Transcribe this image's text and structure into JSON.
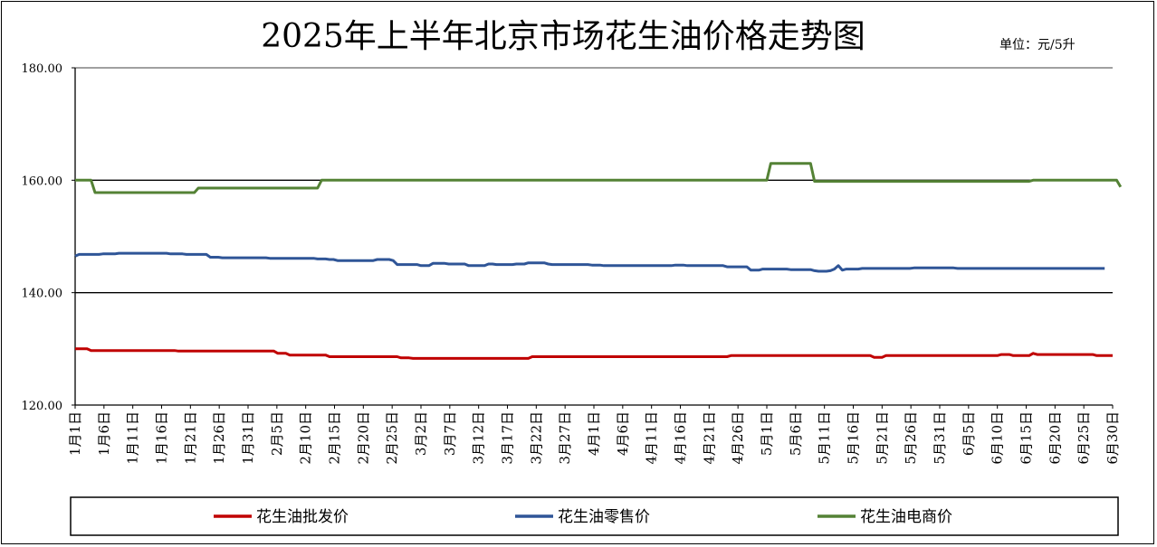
{
  "chart_data": {
    "type": "line",
    "title": "2025年上半年北京市场花生油价格走势图",
    "unit_label": "单位：元/5升",
    "ylim": [
      120,
      180
    ],
    "yticks": [
      "120.00",
      "140.00",
      "160.00",
      "180.00"
    ],
    "gridlines": [
      140,
      160
    ],
    "legend_position": "bottom",
    "x_tick_labels": [
      "1月1日",
      "1月6日",
      "1月11日",
      "1月16日",
      "1月21日",
      "1月26日",
      "1月31日",
      "2月5日",
      "2月10日",
      "2月15日",
      "2月20日",
      "2月25日",
      "3月2日",
      "3月7日",
      "3月12日",
      "3月17日",
      "3月22日",
      "3月27日",
      "4月1日",
      "4月6日",
      "4月11日",
      "4月16日",
      "4月21日",
      "4月26日",
      "5月1日",
      "5月6日",
      "5月11日",
      "5月16日",
      "5月21日",
      "5月26日",
      "5月31日",
      "6月5日",
      "6月10日",
      "6月15日",
      "6月20日",
      "6月25日",
      "6月30日"
    ],
    "series": [
      {
        "name": "花生油批发价",
        "color": "#C00000",
        "values": [
          130,
          130,
          130,
          130,
          129.7,
          129.7,
          129.7,
          129.7,
          129.7,
          129.7,
          129.7,
          129.7,
          129.7,
          129.7,
          129.7,
          129.7,
          129.7,
          129.7,
          129.7,
          129.7,
          129.7,
          129.7,
          129.7,
          129.7,
          129.7,
          129.7,
          129.6,
          129.6,
          129.6,
          129.6,
          129.6,
          129.6,
          129.6,
          129.6,
          129.6,
          129.6,
          129.6,
          129.6,
          129.6,
          129.6,
          129.6,
          129.6,
          129.6,
          129.6,
          129.6,
          129.6,
          129.6,
          129.6,
          129.6,
          129.6,
          129.6,
          129.2,
          129.2,
          129.2,
          128.9,
          128.9,
          128.9,
          128.9,
          128.9,
          128.9,
          128.9,
          128.9,
          128.9,
          128.9,
          128.6,
          128.6,
          128.6,
          128.6,
          128.6,
          128.6,
          128.6,
          128.6,
          128.6,
          128.6,
          128.6,
          128.6,
          128.6,
          128.6,
          128.6,
          128.6,
          128.6,
          128.6,
          128.4,
          128.4,
          128.4,
          128.3,
          128.3,
          128.3,
          128.3,
          128.3,
          128.3,
          128.3,
          128.3,
          128.3,
          128.3,
          128.3,
          128.3,
          128.3,
          128.3,
          128.3,
          128.3,
          128.3,
          128.3,
          128.3,
          128.3,
          128.3,
          128.3,
          128.3,
          128.3,
          128.3,
          128.3,
          128.3,
          128.3,
          128.3,
          128.3,
          128.6,
          128.6,
          128.6,
          128.6,
          128.6,
          128.6,
          128.6,
          128.6,
          128.6,
          128.6,
          128.6,
          128.6,
          128.6,
          128.6,
          128.6,
          128.6,
          128.6,
          128.6,
          128.6,
          128.6,
          128.6,
          128.6,
          128.6,
          128.6,
          128.6,
          128.6,
          128.6,
          128.6,
          128.6,
          128.6,
          128.6,
          128.6,
          128.6,
          128.6,
          128.6,
          128.6,
          128.6,
          128.6,
          128.6,
          128.6,
          128.6,
          128.6,
          128.6,
          128.6,
          128.6,
          128.6,
          128.6,
          128.6,
          128.6,
          128.6,
          128.8,
          128.8,
          128.8,
          128.8,
          128.8,
          128.8,
          128.8,
          128.8,
          128.8,
          128.8,
          128.8,
          128.8,
          128.8,
          128.8,
          128.8,
          128.8,
          128.8,
          128.8,
          128.8,
          128.8,
          128.8,
          128.8,
          128.8,
          128.8,
          128.8,
          128.8,
          128.8,
          128.8,
          128.8,
          128.8,
          128.8,
          128.8,
          128.8,
          128.8,
          128.8,
          128.8,
          128.5,
          128.5,
          128.5,
          128.8,
          128.8,
          128.8,
          128.8,
          128.8,
          128.8,
          128.8,
          128.8,
          128.8,
          128.8,
          128.8,
          128.8,
          128.8,
          128.8,
          128.8,
          128.8,
          128.8,
          128.8,
          128.8,
          128.8,
          128.8,
          128.8,
          128.8,
          128.8,
          128.8,
          128.8,
          128.8,
          128.8,
          128.8,
          129,
          129,
          129,
          128.8,
          128.8,
          128.8,
          128.8,
          128.8,
          129.2,
          129,
          129,
          129,
          129,
          129,
          129,
          129,
          129,
          129,
          129,
          129,
          129,
          129,
          129,
          129,
          128.8,
          128.8,
          128.8,
          128.8,
          128.8
        ]
      },
      {
        "name": "花生油零售价",
        "color": "#2F5597",
        "values": [
          146.5,
          146.8,
          146.8,
          146.8,
          146.8,
          146.8,
          146.8,
          146.9,
          146.9,
          146.9,
          146.9,
          147,
          147,
          147,
          147,
          147,
          147,
          147,
          147,
          147,
          147,
          147,
          147,
          147,
          146.9,
          146.9,
          146.9,
          146.9,
          146.8,
          146.8,
          146.8,
          146.8,
          146.8,
          146.8,
          146.3,
          146.3,
          146.3,
          146.2,
          146.2,
          146.2,
          146.2,
          146.2,
          146.2,
          146.2,
          146.2,
          146.2,
          146.2,
          146.2,
          146.2,
          146.1,
          146.1,
          146.1,
          146.1,
          146.1,
          146.1,
          146.1,
          146.1,
          146.1,
          146.1,
          146.1,
          146.1,
          146,
          146,
          146,
          145.9,
          145.9,
          145.7,
          145.7,
          145.7,
          145.7,
          145.7,
          145.7,
          145.7,
          145.7,
          145.7,
          145.7,
          145.9,
          145.9,
          145.9,
          145.9,
          145.7,
          145,
          145,
          145,
          145,
          145,
          145,
          144.8,
          144.8,
          144.8,
          145.2,
          145.2,
          145.2,
          145.2,
          145.1,
          145.1,
          145.1,
          145.1,
          145.1,
          144.8,
          144.8,
          144.8,
          144.8,
          144.8,
          145.1,
          145.1,
          145,
          145,
          145,
          145,
          145,
          145.1,
          145.1,
          145.1,
          145.3,
          145.3,
          145.3,
          145.3,
          145.3,
          145.1,
          145,
          145,
          145,
          145,
          145,
          145,
          145,
          145,
          145,
          145,
          144.9,
          144.9,
          144.9,
          144.8,
          144.8,
          144.8,
          144.8,
          144.8,
          144.8,
          144.8,
          144.8,
          144.8,
          144.8,
          144.8,
          144.8,
          144.8,
          144.8,
          144.8,
          144.8,
          144.8,
          144.8,
          144.9,
          144.9,
          144.9,
          144.8,
          144.8,
          144.8,
          144.8,
          144.8,
          144.8,
          144.8,
          144.8,
          144.8,
          144.8,
          144.6,
          144.6,
          144.6,
          144.6,
          144.6,
          144.6,
          144,
          144,
          144,
          144.2,
          144.2,
          144.2,
          144.2,
          144.2,
          144.2,
          144.2,
          144.1,
          144.1,
          144.1,
          144.1,
          144.1,
          144.1,
          143.9,
          143.8,
          143.8,
          143.8,
          143.9,
          144.2,
          144.8,
          144,
          144.2,
          144.2,
          144.2,
          144.2,
          144.3,
          144.3,
          144.3,
          144.3,
          144.3,
          144.3,
          144.3,
          144.3,
          144.3,
          144.3,
          144.3,
          144.3,
          144.3,
          144.4,
          144.4,
          144.4,
          144.4,
          144.4,
          144.4,
          144.4,
          144.4,
          144.4,
          144.4,
          144.4,
          144.3,
          144.3,
          144.3,
          144.3,
          144.3,
          144.3,
          144.3,
          144.3,
          144.3,
          144.3,
          144.3,
          144.3,
          144.3,
          144.3,
          144.3,
          144.3,
          144.3,
          144.3,
          144.3,
          144.3,
          144.3,
          144.3,
          144.3,
          144.3,
          144.3,
          144.3,
          144.3,
          144.3,
          144.3,
          144.3,
          144.3,
          144.3,
          144.3,
          144.3,
          144.3,
          144.3,
          144.3,
          144.3
        ]
      },
      {
        "name": "花生油电商价",
        "color": "#548235",
        "values": [
          160,
          160,
          160,
          160,
          160,
          157.8,
          157.8,
          157.8,
          157.8,
          157.8,
          157.8,
          157.8,
          157.8,
          157.8,
          157.8,
          157.8,
          157.8,
          157.8,
          157.8,
          157.8,
          157.8,
          157.8,
          157.8,
          157.8,
          157.8,
          157.8,
          157.8,
          157.8,
          157.8,
          157.8,
          157.8,
          158.6,
          158.6,
          158.6,
          158.6,
          158.6,
          158.6,
          158.6,
          158.6,
          158.6,
          158.6,
          158.6,
          158.6,
          158.6,
          158.6,
          158.6,
          158.6,
          158.6,
          158.6,
          158.6,
          158.6,
          158.6,
          158.6,
          158.6,
          158.6,
          158.6,
          158.6,
          158.6,
          158.6,
          158.6,
          158.6,
          158.6,
          160,
          160,
          160,
          160,
          160,
          160,
          160,
          160,
          160,
          160,
          160,
          160,
          160,
          160,
          160,
          160,
          160,
          160,
          160,
          160,
          160,
          160,
          160,
          160,
          160,
          160,
          160,
          160,
          160,
          160,
          160,
          160,
          160,
          160,
          160,
          160,
          160,
          160,
          160,
          160,
          160,
          160,
          160,
          160,
          160,
          160,
          160,
          160,
          160,
          160,
          160,
          160,
          160,
          160,
          160,
          160,
          160,
          160,
          160,
          160,
          160,
          160,
          160,
          160,
          160,
          160,
          160,
          160,
          160,
          160,
          160,
          160,
          160,
          160,
          160,
          160,
          160,
          160,
          160,
          160,
          160,
          160,
          160,
          160,
          160,
          160,
          160,
          160,
          160,
          160,
          160,
          160,
          160,
          160,
          160,
          160,
          160,
          160,
          160,
          160,
          160,
          160,
          160,
          160,
          160,
          160,
          160,
          160,
          160,
          160,
          160,
          160,
          160,
          163,
          163,
          163,
          163,
          163,
          163,
          163,
          163,
          163,
          163,
          163,
          159.8,
          159.8,
          159.8,
          159.8,
          159.8,
          159.8,
          159.8,
          159.8,
          159.8,
          159.8,
          159.8,
          159.8,
          159.8,
          159.8,
          159.8,
          159.8,
          159.8,
          159.8,
          159.8,
          159.8,
          159.8,
          159.8,
          159.8,
          159.8,
          159.8,
          159.8,
          159.8,
          159.8,
          159.8,
          159.8,
          159.8,
          159.8,
          159.8,
          159.8,
          159.8,
          159.8,
          159.8,
          159.8,
          159.8,
          159.8,
          159.8,
          159.8,
          159.8,
          159.8,
          159.8,
          159.8,
          159.8,
          159.8,
          159.8,
          159.8,
          159.8,
          159.8,
          159.8,
          159.8,
          159.8,
          160,
          160,
          160,
          160,
          160,
          160,
          160,
          160,
          160,
          160,
          160,
          160,
          160,
          160,
          160,
          160,
          160,
          160,
          160,
          160,
          160,
          160,
          158.8
        ]
      }
    ]
  }
}
